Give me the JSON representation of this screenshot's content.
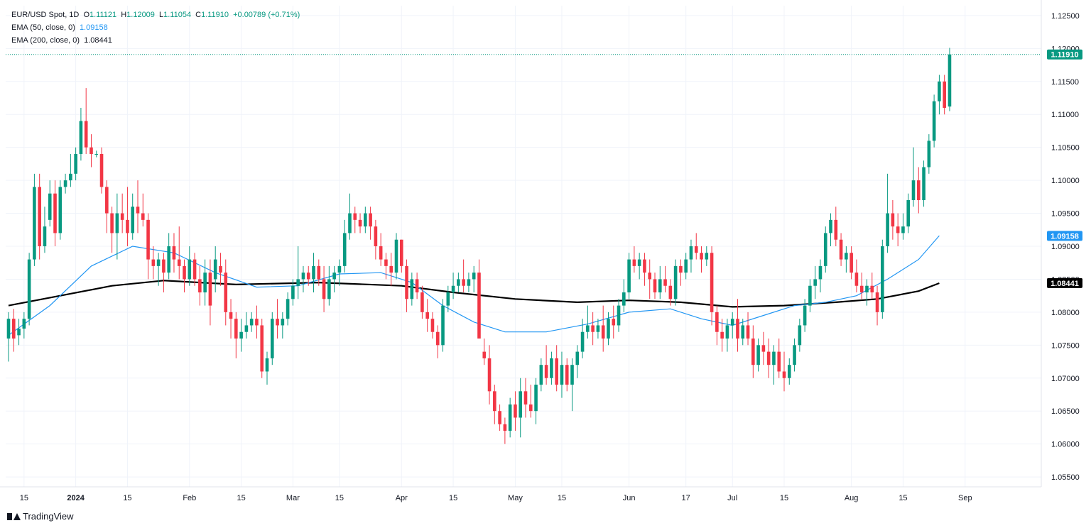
{
  "legend": {
    "symbol": "EUR/USD Spot, 1D",
    "ohlc": {
      "o_label": "O",
      "o": "1.11121",
      "h_label": "H",
      "h": "1.12009",
      "l_label": "L",
      "l": "1.11054",
      "c_label": "C",
      "c": "1.11910",
      "change": "+0.00789 (+0.71%)"
    },
    "ema50": {
      "label": "EMA (50, close, 0)",
      "value": "1.09158"
    },
    "ema200": {
      "label": "EMA (200, close, 0)",
      "value": "1.08441"
    }
  },
  "branding": {
    "logo_text": "TradingView"
  },
  "colors": {
    "up": "#089981",
    "down": "#f23645",
    "ema50": "#2196f3",
    "ema200": "#000000",
    "grid": "#f0f3fa",
    "axis_text": "#131722"
  },
  "chart_data": {
    "type": "candlestick",
    "y_ticks": [
      "1.12500",
      "1.12000",
      "1.11500",
      "1.11000",
      "1.10500",
      "1.10000",
      "1.09500",
      "1.09000",
      "1.08500",
      "1.08000",
      "1.07500",
      "1.07000",
      "1.06500",
      "1.06000",
      "1.05500"
    ],
    "ylim": [
      1.0535,
      1.1265
    ],
    "x_ticks": [
      {
        "label": "15",
        "bar": 3
      },
      {
        "label": "2024",
        "bar": 13
      },
      {
        "label": "15",
        "bar": 23
      },
      {
        "label": "Feb",
        "bar": 35
      },
      {
        "label": "15",
        "bar": 45
      },
      {
        "label": "Mar",
        "bar": 55
      },
      {
        "label": "15",
        "bar": 64
      },
      {
        "label": "Apr",
        "bar": 76
      },
      {
        "label": "15",
        "bar": 86
      },
      {
        "label": "May",
        "bar": 98
      },
      {
        "label": "15",
        "bar": 107
      },
      {
        "label": "Jun",
        "bar": 120
      },
      {
        "label": "17",
        "bar": 131
      },
      {
        "label": "Jul",
        "bar": 140
      },
      {
        "label": "15",
        "bar": 150
      },
      {
        "label": "Aug",
        "bar": 163
      },
      {
        "label": "15",
        "bar": 173
      },
      {
        "label": "Sep",
        "bar": 185
      }
    ],
    "price_line": 1.1191,
    "price_label": "1.11910",
    "ema50_label": "1.09158",
    "ema200_label": "1.08441",
    "candles": [
      [
        1.076,
        1.08,
        1.0725,
        1.079
      ],
      [
        1.079,
        1.0805,
        1.074,
        1.076
      ],
      [
        1.0765,
        1.079,
        1.075,
        1.0775
      ],
      [
        1.0775,
        1.08,
        1.076,
        1.079
      ],
      [
        1.079,
        1.089,
        1.078,
        1.088
      ],
      [
        1.088,
        1.101,
        1.087,
        1.099
      ],
      [
        1.099,
        1.101,
        1.088,
        1.09
      ],
      [
        1.09,
        1.096,
        1.089,
        1.093
      ],
      [
        1.094,
        1.1,
        1.093,
        1.098
      ],
      [
        1.098,
        1.1,
        1.09,
        1.092
      ],
      [
        1.092,
        1.1,
        1.091,
        1.099
      ],
      [
        1.099,
        1.101,
        1.098,
        1.1
      ],
      [
        1.1,
        1.104,
        1.099,
        1.101
      ],
      [
        1.101,
        1.105,
        1.1,
        1.104
      ],
      [
        1.104,
        1.111,
        1.103,
        1.109
      ],
      [
        1.109,
        1.114,
        1.104,
        1.105
      ],
      [
        1.105,
        1.107,
        1.102,
        1.104
      ],
      [
        1.104,
        1.1045,
        1.1035,
        1.104
      ],
      [
        1.104,
        1.105,
        1.098,
        1.099
      ],
      [
        1.099,
        1.1,
        1.092,
        1.095
      ],
      [
        1.095,
        1.096,
        1.089,
        1.092
      ],
      [
        1.092,
        1.098,
        1.088,
        1.095
      ],
      [
        1.095,
        1.098,
        1.092,
        1.094
      ],
      [
        1.094,
        1.099,
        1.09,
        1.092
      ],
      [
        1.092,
        1.098,
        1.091,
        1.096
      ],
      [
        1.096,
        1.1,
        1.092,
        1.095
      ],
      [
        1.095,
        1.098,
        1.093,
        1.094
      ],
      [
        1.094,
        1.095,
        1.085,
        1.088
      ],
      [
        1.088,
        1.09,
        1.085,
        1.087
      ],
      [
        1.087,
        1.089,
        1.084,
        1.088
      ],
      [
        1.088,
        1.089,
        1.083,
        1.086
      ],
      [
        1.086,
        1.092,
        1.085,
        1.09
      ],
      [
        1.09,
        1.092,
        1.086,
        1.088
      ],
      [
        1.088,
        1.093,
        1.085,
        1.087
      ],
      [
        1.087,
        1.088,
        1.083,
        1.085
      ],
      [
        1.085,
        1.09,
        1.084,
        1.088
      ],
      [
        1.088,
        1.089,
        1.084,
        1.085
      ],
      [
        1.085,
        1.087,
        1.081,
        1.083
      ],
      [
        1.083,
        1.088,
        1.081,
        1.086
      ],
      [
        1.086,
        1.088,
        1.078,
        1.081
      ],
      [
        1.085,
        1.09,
        1.083,
        1.088
      ],
      [
        1.087,
        1.089,
        1.084,
        1.086
      ],
      [
        1.086,
        1.088,
        1.078,
        1.08
      ],
      [
        1.08,
        1.082,
        1.076,
        1.079
      ],
      [
        1.079,
        1.08,
        1.073,
        1.076
      ],
      [
        1.076,
        1.079,
        1.074,
        1.077
      ],
      [
        1.077,
        1.08,
        1.076,
        1.078
      ],
      [
        1.078,
        1.08,
        1.077,
        1.079
      ],
      [
        1.079,
        1.081,
        1.076,
        1.078
      ],
      [
        1.078,
        1.079,
        1.07,
        1.071
      ],
      [
        1.071,
        1.074,
        1.069,
        1.073
      ],
      [
        1.073,
        1.08,
        1.072,
        1.079
      ],
      [
        1.079,
        1.082,
        1.076,
        1.078
      ],
      [
        1.078,
        1.08,
        1.076,
        1.079
      ],
      [
        1.079,
        1.083,
        1.078,
        1.082
      ],
      [
        1.082,
        1.085,
        1.081,
        1.084
      ],
      [
        1.084,
        1.09,
        1.082,
        1.085
      ],
      [
        1.085,
        1.087,
        1.083,
        1.086
      ],
      [
        1.086,
        1.087,
        1.084,
        1.085
      ],
      [
        1.085,
        1.089,
        1.083,
        1.087
      ],
      [
        1.087,
        1.088,
        1.084,
        1.085
      ],
      [
        1.085,
        1.087,
        1.08,
        1.082
      ],
      [
        1.082,
        1.087,
        1.081,
        1.085
      ],
      [
        1.085,
        1.087,
        1.083,
        1.086
      ],
      [
        1.086,
        1.088,
        1.084,
        1.087
      ],
      [
        1.087,
        1.094,
        1.086,
        1.092
      ],
      [
        1.092,
        1.098,
        1.091,
        1.095
      ],
      [
        1.095,
        1.096,
        1.092,
        1.094
      ],
      [
        1.094,
        1.095,
        1.092,
        1.093
      ],
      [
        1.093,
        1.096,
        1.092,
        1.095
      ],
      [
        1.095,
        1.096,
        1.091,
        1.093
      ],
      [
        1.093,
        1.094,
        1.088,
        1.09
      ],
      [
        1.09,
        1.092,
        1.087,
        1.088
      ],
      [
        1.088,
        1.089,
        1.085,
        1.087
      ],
      [
        1.087,
        1.089,
        1.084,
        1.086
      ],
      [
        1.086,
        1.092,
        1.085,
        1.091
      ],
      [
        1.091,
        1.091,
        1.086,
        1.087
      ],
      [
        1.087,
        1.088,
        1.08,
        1.082
      ],
      [
        1.082,
        1.086,
        1.081,
        1.085
      ],
      [
        1.085,
        1.086,
        1.082,
        1.083
      ],
      [
        1.083,
        1.084,
        1.079,
        1.08
      ],
      [
        1.08,
        1.082,
        1.077,
        1.079
      ],
      [
        1.079,
        1.08,
        1.076,
        1.077
      ],
      [
        1.077,
        1.078,
        1.073,
        1.075
      ],
      [
        1.075,
        1.082,
        1.074,
        1.081
      ],
      [
        1.081,
        1.084,
        1.08,
        1.083
      ],
      [
        1.083,
        1.086,
        1.082,
        1.084
      ],
      [
        1.084,
        1.086,
        1.083,
        1.085
      ],
      [
        1.085,
        1.088,
        1.083,
        1.084
      ],
      [
        1.084,
        1.086,
        1.083,
        1.085
      ],
      [
        1.085,
        1.087,
        1.083,
        1.086
      ],
      [
        1.086,
        1.088,
        1.076,
        1.076
      ],
      [
        1.074,
        1.076,
        1.072,
        1.073
      ],
      [
        1.073,
        1.075,
        1.066,
        1.068
      ],
      [
        1.068,
        1.069,
        1.063,
        1.065
      ],
      [
        1.065,
        1.066,
        1.062,
        1.063
      ],
      [
        1.063,
        1.064,
        1.06,
        1.062
      ],
      [
        1.062,
        1.067,
        1.061,
        1.066
      ],
      [
        1.066,
        1.068,
        1.062,
        1.064
      ],
      [
        1.064,
        1.07,
        1.061,
        1.068
      ],
      [
        1.068,
        1.07,
        1.064,
        1.066
      ],
      [
        1.066,
        1.069,
        1.064,
        1.065
      ],
      [
        1.065,
        1.07,
        1.063,
        1.069
      ],
      [
        1.069,
        1.073,
        1.068,
        1.072
      ],
      [
        1.072,
        1.075,
        1.069,
        1.07
      ],
      [
        1.07,
        1.074,
        1.069,
        1.073
      ],
      [
        1.073,
        1.075,
        1.068,
        1.069
      ],
      [
        1.069,
        1.074,
        1.067,
        1.072
      ],
      [
        1.072,
        1.073,
        1.068,
        1.069
      ],
      [
        1.069,
        1.073,
        1.065,
        1.072
      ],
      [
        1.072,
        1.075,
        1.07,
        1.074
      ],
      [
        1.074,
        1.079,
        1.073,
        1.077
      ],
      [
        1.077,
        1.081,
        1.076,
        1.078
      ],
      [
        1.078,
        1.08,
        1.075,
        1.077
      ],
      [
        1.077,
        1.079,
        1.076,
        1.078
      ],
      [
        1.078,
        1.081,
        1.074,
        1.076
      ],
      [
        1.076,
        1.08,
        1.075,
        1.079
      ],
      [
        1.079,
        1.081,
        1.076,
        1.078
      ],
      [
        1.078,
        1.082,
        1.077,
        1.081
      ],
      [
        1.081,
        1.085,
        1.08,
        1.083
      ],
      [
        1.083,
        1.089,
        1.082,
        1.088
      ],
      [
        1.088,
        1.09,
        1.086,
        1.087
      ],
      [
        1.087,
        1.089,
        1.085,
        1.088
      ],
      [
        1.088,
        1.089,
        1.084,
        1.086
      ],
      [
        1.086,
        1.088,
        1.082,
        1.085
      ],
      [
        1.085,
        1.086,
        1.082,
        1.083
      ],
      [
        1.083,
        1.087,
        1.082,
        1.085
      ],
      [
        1.085,
        1.087,
        1.083,
        1.084
      ],
      [
        1.084,
        1.085,
        1.081,
        1.082
      ],
      [
        1.082,
        1.088,
        1.081,
        1.087
      ],
      [
        1.087,
        1.088,
        1.084,
        1.086
      ],
      [
        1.086,
        1.089,
        1.085,
        1.088
      ],
      [
        1.088,
        1.091,
        1.086,
        1.09
      ],
      [
        1.09,
        1.092,
        1.088,
        1.089
      ],
      [
        1.089,
        1.09,
        1.086,
        1.088
      ],
      [
        1.088,
        1.09,
        1.087,
        1.089
      ],
      [
        1.089,
        1.09,
        1.078,
        1.08
      ],
      [
        1.08,
        1.081,
        1.075,
        1.077
      ],
      [
        1.077,
        1.079,
        1.074,
        1.076
      ],
      [
        1.076,
        1.079,
        1.074,
        1.078
      ],
      [
        1.078,
        1.08,
        1.076,
        1.079
      ],
      [
        1.079,
        1.082,
        1.074,
        1.076
      ],
      [
        1.076,
        1.079,
        1.075,
        1.078
      ],
      [
        1.078,
        1.08,
        1.075,
        1.076
      ],
      [
        1.076,
        1.078,
        1.07,
        1.072
      ],
      [
        1.072,
        1.076,
        1.071,
        1.075
      ],
      [
        1.075,
        1.077,
        1.072,
        1.074
      ],
      [
        1.074,
        1.076,
        1.07,
        1.072
      ],
      [
        1.072,
        1.075,
        1.069,
        1.074
      ],
      [
        1.074,
        1.076,
        1.07,
        1.071
      ],
      [
        1.071,
        1.074,
        1.068,
        1.07
      ],
      [
        1.07,
        1.073,
        1.069,
        1.072
      ],
      [
        1.072,
        1.076,
        1.071,
        1.075
      ],
      [
        1.075,
        1.079,
        1.074,
        1.078
      ],
      [
        1.078,
        1.082,
        1.077,
        1.081
      ],
      [
        1.081,
        1.085,
        1.08,
        1.084
      ],
      [
        1.084,
        1.087,
        1.082,
        1.085
      ],
      [
        1.085,
        1.088,
        1.083,
        1.087
      ],
      [
        1.087,
        1.093,
        1.086,
        1.092
      ],
      [
        1.092,
        1.095,
        1.09,
        1.094
      ],
      [
        1.094,
        1.096,
        1.09,
        1.091
      ],
      [
        1.091,
        1.092,
        1.087,
        1.088
      ],
      [
        1.088,
        1.09,
        1.086,
        1.089
      ],
      [
        1.089,
        1.09,
        1.085,
        1.086
      ],
      [
        1.086,
        1.088,
        1.083,
        1.084
      ],
      [
        1.084,
        1.086,
        1.082,
        1.083
      ],
      [
        1.083,
        1.085,
        1.081,
        1.084
      ],
      [
        1.084,
        1.086,
        1.082,
        1.083
      ],
      [
        1.083,
        1.084,
        1.078,
        1.08
      ],
      [
        1.08,
        1.091,
        1.079,
        1.09
      ],
      [
        1.09,
        1.101,
        1.089,
        1.095
      ],
      [
        1.095,
        1.097,
        1.091,
        1.093
      ],
      [
        1.093,
        1.095,
        1.09,
        1.092
      ],
      [
        1.092,
        1.095,
        1.091,
        1.093
      ],
      [
        1.093,
        1.098,
        1.092,
        1.097
      ],
      [
        1.097,
        1.105,
        1.096,
        1.1
      ],
      [
        1.1,
        1.102,
        1.095,
        1.097
      ],
      [
        1.097,
        1.103,
        1.096,
        1.102
      ],
      [
        1.102,
        1.107,
        1.101,
        1.106
      ],
      [
        1.106,
        1.113,
        1.105,
        1.112
      ],
      [
        1.112,
        1.116,
        1.11,
        1.115
      ],
      [
        1.115,
        1.116,
        1.11,
        1.111
      ],
      [
        1.1112,
        1.1201,
        1.1105,
        1.1191
      ]
    ],
    "ema50": [
      [
        0,
        1.0765
      ],
      [
        8,
        1.081
      ],
      [
        16,
        1.087
      ],
      [
        24,
        1.09
      ],
      [
        32,
        1.089
      ],
      [
        40,
        1.086
      ],
      [
        48,
        1.0838
      ],
      [
        56,
        1.084
      ],
      [
        64,
        1.0858
      ],
      [
        72,
        1.086
      ],
      [
        78,
        1.0845
      ],
      [
        84,
        1.081
      ],
      [
        90,
        1.0785
      ],
      [
        96,
        1.077
      ],
      [
        104,
        1.077
      ],
      [
        112,
        1.0782
      ],
      [
        120,
        1.08
      ],
      [
        128,
        1.0805
      ],
      [
        134,
        1.079
      ],
      [
        140,
        1.078
      ],
      [
        146,
        1.0795
      ],
      [
        152,
        1.081
      ],
      [
        158,
        1.0815
      ],
      [
        164,
        1.0825
      ],
      [
        170,
        1.085
      ],
      [
        176,
        1.088
      ],
      [
        180,
        1.0916
      ]
    ],
    "ema200": [
      [
        0,
        1.081
      ],
      [
        10,
        1.0825
      ],
      [
        20,
        1.084
      ],
      [
        30,
        1.0848
      ],
      [
        44,
        1.0842
      ],
      [
        60,
        1.0845
      ],
      [
        76,
        1.084
      ],
      [
        86,
        1.083
      ],
      [
        98,
        1.082
      ],
      [
        110,
        1.0815
      ],
      [
        120,
        1.0818
      ],
      [
        130,
        1.0815
      ],
      [
        140,
        1.0808
      ],
      [
        150,
        1.081
      ],
      [
        160,
        1.0815
      ],
      [
        168,
        1.082
      ],
      [
        176,
        1.0832
      ],
      [
        180,
        1.0844
      ]
    ]
  }
}
